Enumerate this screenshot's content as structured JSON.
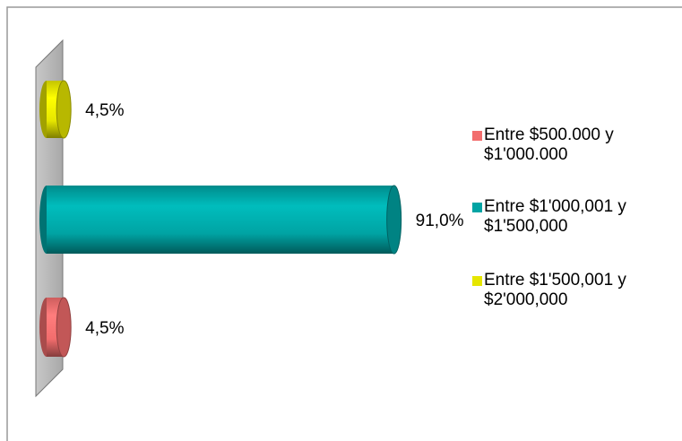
{
  "chart_data": {
    "type": "bar3d-horizontal",
    "categories": [
      "Entre $500.000 y $1'000.000",
      "Entre $1'000,001 y $1'500,000",
      "Entre $1'500,001 y $2'000,000"
    ],
    "values": [
      4.5,
      91.0,
      4.5
    ],
    "value_labels": [
      "4,5%",
      "91,0%",
      "4,5%"
    ],
    "colors": [
      "#f26d6d",
      "#00a4a4",
      "#e6e600"
    ],
    "legend": "right"
  }
}
